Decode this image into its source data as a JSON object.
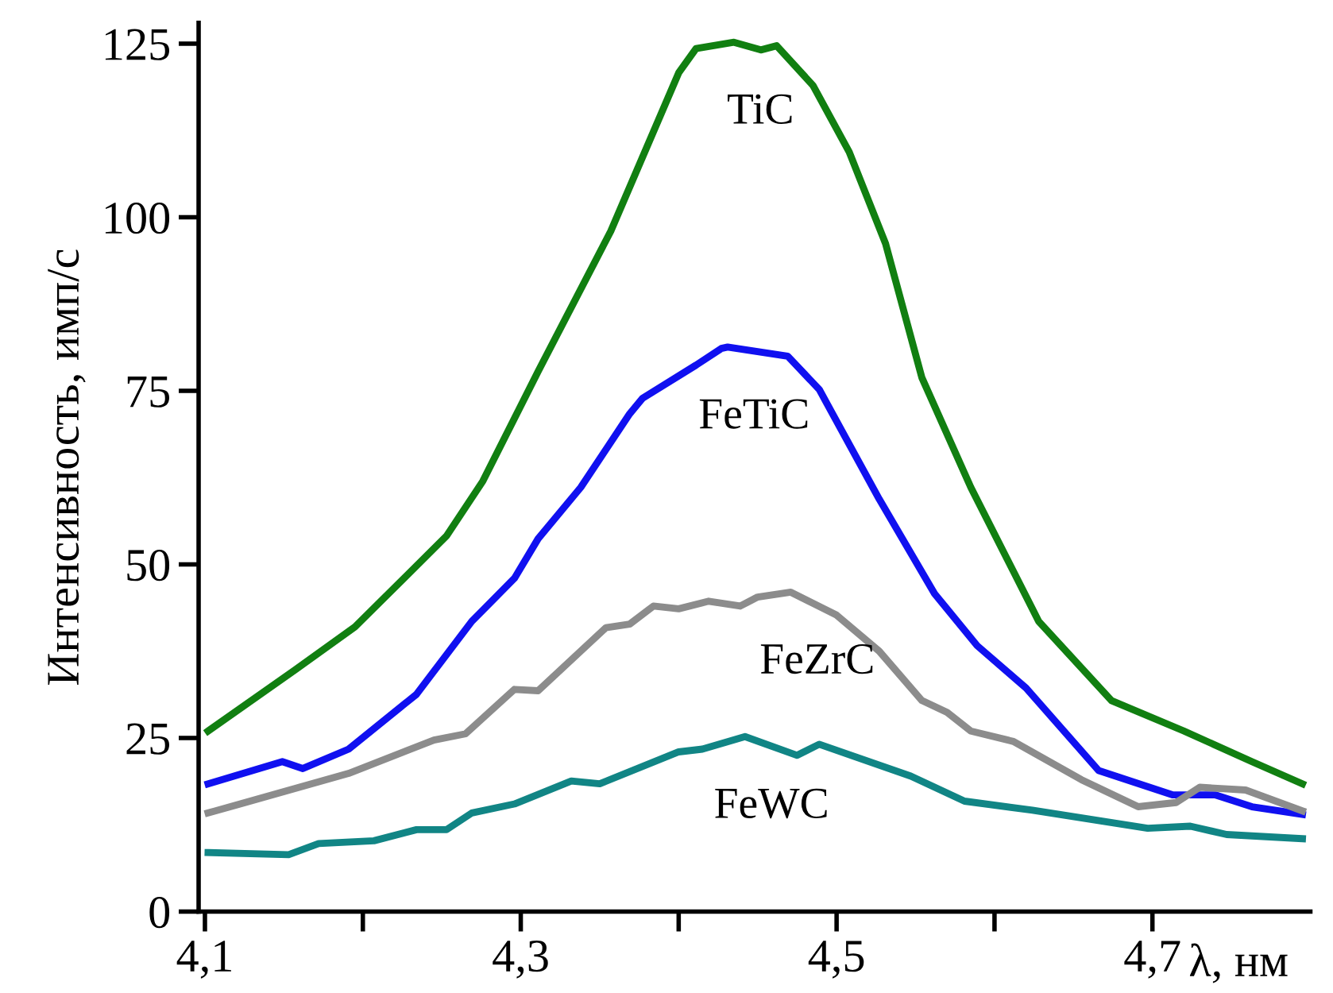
{
  "chart_data": {
    "type": "line",
    "xlabel": "λ, нм",
    "ylabel": "Интенсивность, имп/с",
    "xlim": [
      4.096,
      4.8
    ],
    "ylim": [
      0,
      128
    ],
    "xticks": [
      {
        "value": 4.1,
        "label": "4,1"
      },
      {
        "value": 4.2,
        "label": null
      },
      {
        "value": 4.3,
        "label": "4,3"
      },
      {
        "value": 4.4,
        "label": null
      },
      {
        "value": 4.5,
        "label": "4,5"
      },
      {
        "value": 4.6,
        "label": null
      },
      {
        "value": 4.7,
        "label": "4,7"
      }
    ],
    "yticks": [
      0,
      25,
      50,
      75,
      100,
      125
    ],
    "grid": false,
    "legend": false,
    "marker": "none",
    "line_style": "solid",
    "series": [
      {
        "name": "TiC",
        "color": "#117f11",
        "x": [
          4.102,
          4.157,
          4.195,
          4.253,
          4.276,
          4.311,
          4.357,
          4.4,
          4.411,
          4.435,
          4.452,
          4.462,
          4.485,
          4.508,
          4.531,
          4.554,
          4.585,
          4.628,
          4.674,
          4.72,
          4.763,
          4.795
        ],
        "values": [
          26.0,
          34.8,
          41.0,
          54.1,
          62.0,
          77.8,
          98.0,
          120.8,
          124.3,
          125.2,
          124.1,
          124.7,
          119.0,
          109.4,
          96.2,
          76.9,
          61.1,
          41.8,
          30.4,
          26.0,
          21.6,
          18.4
        ]
      },
      {
        "name": "FeTiC",
        "color": "#1010f0",
        "x": [
          4.102,
          4.149,
          4.162,
          4.191,
          4.234,
          4.269,
          4.296,
          4.311,
          4.338,
          4.369,
          4.377,
          4.411,
          4.427,
          4.431,
          4.469,
          4.489,
          4.527,
          4.562,
          4.589,
          4.62,
          4.666,
          4.713,
          4.74,
          4.763,
          4.795
        ],
        "values": [
          18.4,
          21.6,
          20.6,
          23.4,
          31.3,
          41.8,
          48.0,
          53.7,
          61.1,
          71.7,
          73.9,
          78.7,
          81.1,
          81.3,
          80.0,
          75.2,
          59.4,
          45.8,
          38.3,
          32.2,
          20.3,
          16.8,
          16.8,
          15.1,
          14.0
        ]
      },
      {
        "name": "FeZrC",
        "color": "#8c8c8c",
        "x": [
          4.102,
          4.191,
          4.245,
          4.265,
          4.296,
          4.311,
          4.354,
          4.369,
          4.384,
          4.4,
          4.419,
          4.439,
          4.45,
          4.471,
          4.5,
          4.527,
          4.554,
          4.57,
          4.585,
          4.612,
          4.655,
          4.691,
          4.715,
          4.73,
          4.759,
          4.795
        ],
        "values": [
          14.2,
          19.9,
          24.7,
          25.6,
          32.0,
          31.8,
          40.9,
          41.4,
          44.0,
          43.6,
          44.7,
          44.0,
          45.3,
          46.0,
          42.7,
          37.5,
          30.4,
          28.7,
          26.0,
          24.5,
          19.0,
          15.1,
          15.7,
          17.9,
          17.5,
          14.5
        ]
      },
      {
        "name": "FeWC",
        "color": "#118585",
        "x": [
          4.102,
          4.153,
          4.172,
          4.207,
          4.234,
          4.253,
          4.269,
          4.296,
          4.332,
          4.35,
          4.4,
          4.415,
          4.442,
          4.475,
          4.489,
          4.547,
          4.581,
          4.624,
          4.697,
          4.724,
          4.747,
          4.795
        ],
        "values": [
          8.5,
          8.2,
          9.8,
          10.2,
          11.8,
          11.8,
          14.2,
          15.5,
          18.8,
          18.4,
          23.0,
          23.4,
          25.2,
          22.5,
          24.1,
          19.5,
          15.9,
          14.6,
          12.0,
          12.3,
          11.1,
          10.5
        ]
      }
    ]
  }
}
